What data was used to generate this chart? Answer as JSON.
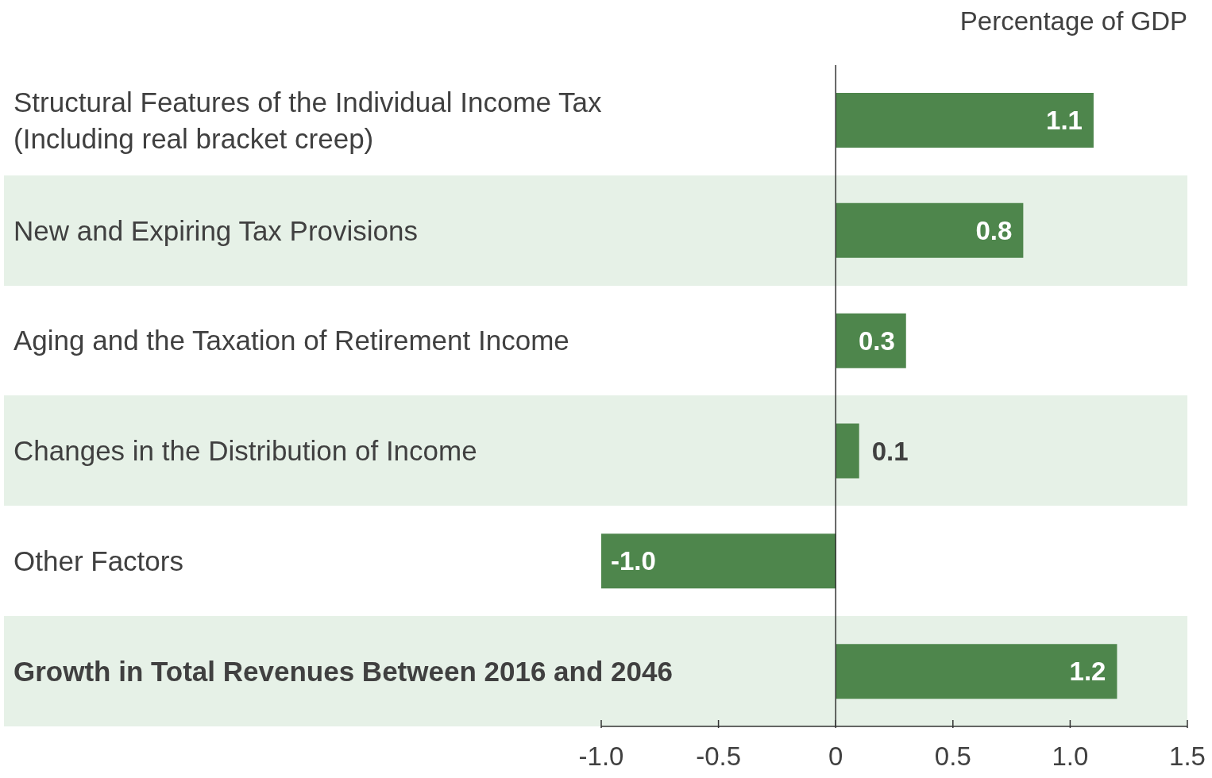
{
  "chart_data": {
    "type": "bar",
    "orientation": "horizontal",
    "xlabel": "Percentage of GDP",
    "categories": [
      "Structural Features of the Individual Income Tax (Including real bracket creep)",
      "New and Expiring Tax Provisions",
      "Aging and the Taxation of Retirement Income",
      "Changes in the Distribution of Income",
      "Other Factors",
      "Growth in Total Revenues Between 2016 and 2046"
    ],
    "values": [
      1.1,
      0.8,
      0.3,
      0.1,
      -1.0,
      1.2
    ],
    "value_labels": [
      "1.1",
      "0.8",
      "0.3",
      "0.1",
      "-1.0",
      "1.2"
    ],
    "color": "#4e864c",
    "xlim": [
      -1.0,
      1.5
    ],
    "xticks": [
      {
        "value": -1.0,
        "label": "-1.0"
      },
      {
        "value": -0.5,
        "label": "-0.5"
      },
      0,
      0.5,
      {
        "value": 1.0,
        "label": "1.0"
      },
      1.5
    ],
    "ref_lines": [
      {
        "axis": "x",
        "value": 0,
        "color": "#333333"
      }
    ],
    "grid": false,
    "legend": false
  }
}
